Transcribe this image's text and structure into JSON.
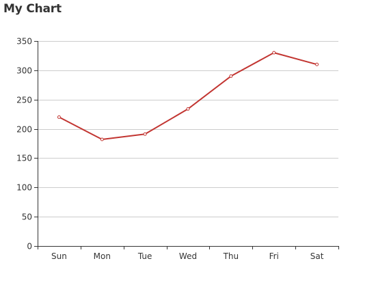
{
  "chart_data": {
    "type": "line",
    "title": "My Chart",
    "categories": [
      "Sun",
      "Mon",
      "Tue",
      "Wed",
      "Thu",
      "Fri",
      "Sat"
    ],
    "series": [
      {
        "values": [
          220,
          182,
          191,
          234,
          290,
          330,
          310
        ],
        "color": "#c23531"
      }
    ],
    "ylim": [
      0,
      350
    ],
    "yticks": [
      0,
      50,
      100,
      150,
      200,
      250,
      300,
      350
    ],
    "grid": true,
    "xlabel": "",
    "ylabel": ""
  }
}
